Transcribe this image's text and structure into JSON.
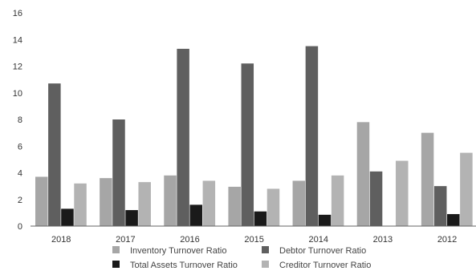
{
  "chart_data": {
    "type": "bar",
    "categories": [
      "2018",
      "2017",
      "2016",
      "2015",
      "2014",
      "2013",
      "2012"
    ],
    "series": [
      {
        "name": "Inventory Turnover Ratio",
        "color": "#a6a6a6",
        "values": [
          3.7,
          3.6,
          3.8,
          2.95,
          3.4,
          7.8,
          7.0
        ]
      },
      {
        "name": "Debtor Turnover Ratio",
        "color": "#5f5f5f",
        "values": [
          10.7,
          8.0,
          13.3,
          12.2,
          13.5,
          4.1,
          3.0
        ]
      },
      {
        "name": "Total Assets Turnover Ratio",
        "color": "#1a1a1a",
        "values": [
          1.3,
          1.2,
          1.6,
          1.1,
          0.85,
          0,
          0.9
        ]
      },
      {
        "name": "Creditor Turnover Ratio",
        "color": "#b3b3b3",
        "values": [
          3.2,
          3.3,
          3.4,
          2.8,
          3.8,
          4.9,
          5.5
        ]
      }
    ],
    "y_ticks": [
      "0",
      "2",
      "4",
      "6",
      "8",
      "10",
      "12",
      "14",
      "16"
    ],
    "ylim": [
      0,
      16
    ],
    "grid": false,
    "legend_position": "bottom"
  }
}
